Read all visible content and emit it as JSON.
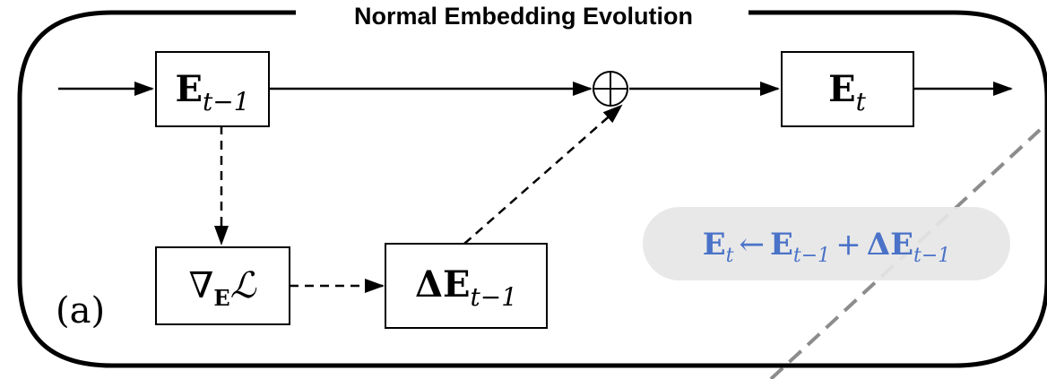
{
  "title": "Normal Embedding Evolution",
  "panel_label": "(a)",
  "colors": {
    "stroke": "#000000",
    "formula_text": "#4a72c8",
    "formula_bg": "#e6e6e6",
    "diagonal": "#8c8c8c"
  },
  "nodes": {
    "e_prev": {
      "main": "E",
      "sub": "t−1"
    },
    "e_curr": {
      "main": "E",
      "sub": "t"
    },
    "grad": {
      "main": "∇",
      "sub": "E",
      "tail": "ℒ"
    },
    "delta": {
      "main": "ΔE",
      "sub": "t−1"
    },
    "sum": {
      "symbol": "⊕"
    }
  },
  "formula": {
    "lhs": "E",
    "lhs_sub": "t",
    "arrow": "←",
    "term1": "E",
    "term1_sub": "t−1",
    "plus": "+",
    "term2": "ΔE",
    "term2_sub": "t−1"
  }
}
